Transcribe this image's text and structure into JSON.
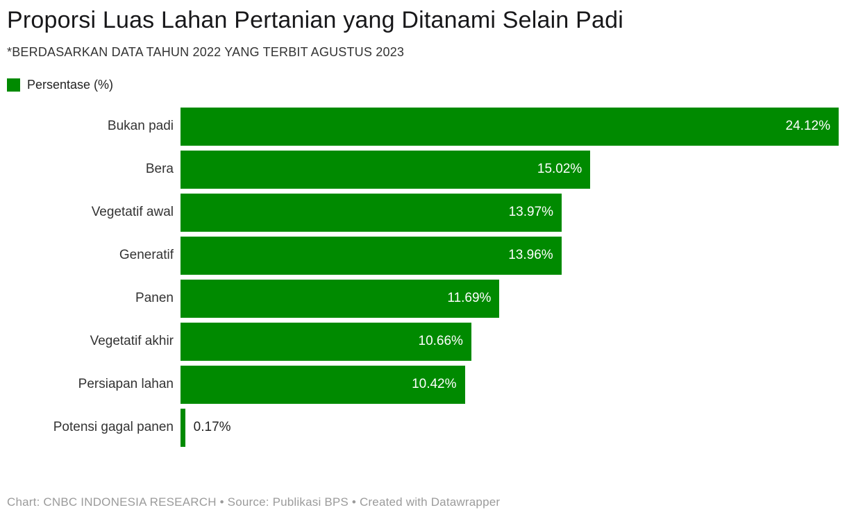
{
  "header": {
    "title": "Proporsi Luas Lahan Pertanian yang Ditanami Selain Padi",
    "subtitle": "*BERDASARKAN DATA TAHUN 2022 YANG TERBIT AGUSTUS 2023"
  },
  "legend": {
    "label": "Persentase (%)",
    "swatch_color": "#008a00"
  },
  "footer": {
    "text": "Chart: CNBC INDONESIA RESEARCH • Source: Publikasi BPS • Created with Datawrapper"
  },
  "chart_data": {
    "type": "bar",
    "orientation": "horizontal",
    "title": "Proporsi Luas Lahan Pertanian yang Ditanami Selain Padi",
    "subtitle": "*BERDASARKAN DATA TAHUN 2022 YANG TERBIT AGUSTUS 2023",
    "series_name": "Persentase (%)",
    "categories": [
      "Bukan padi",
      "Bera",
      "Vegetatif awal",
      "Generatif",
      "Panen",
      "Vegetatif akhir",
      "Persiapan lahan",
      "Potensi gagal panen"
    ],
    "values": [
      24.12,
      15.02,
      13.97,
      13.96,
      11.69,
      10.66,
      10.42,
      0.17
    ],
    "value_labels": [
      "24.12%",
      "15.02%",
      "13.97%",
      "13.96%",
      "11.69%",
      "10.66%",
      "10.42%",
      "0.17%"
    ],
    "xlim": [
      0,
      24.12
    ],
    "bar_color": "#008a00",
    "grid": false,
    "legend_position": "top-left",
    "value_label_color_inside": "#ffffff",
    "value_label_color_outside": "#222222"
  }
}
